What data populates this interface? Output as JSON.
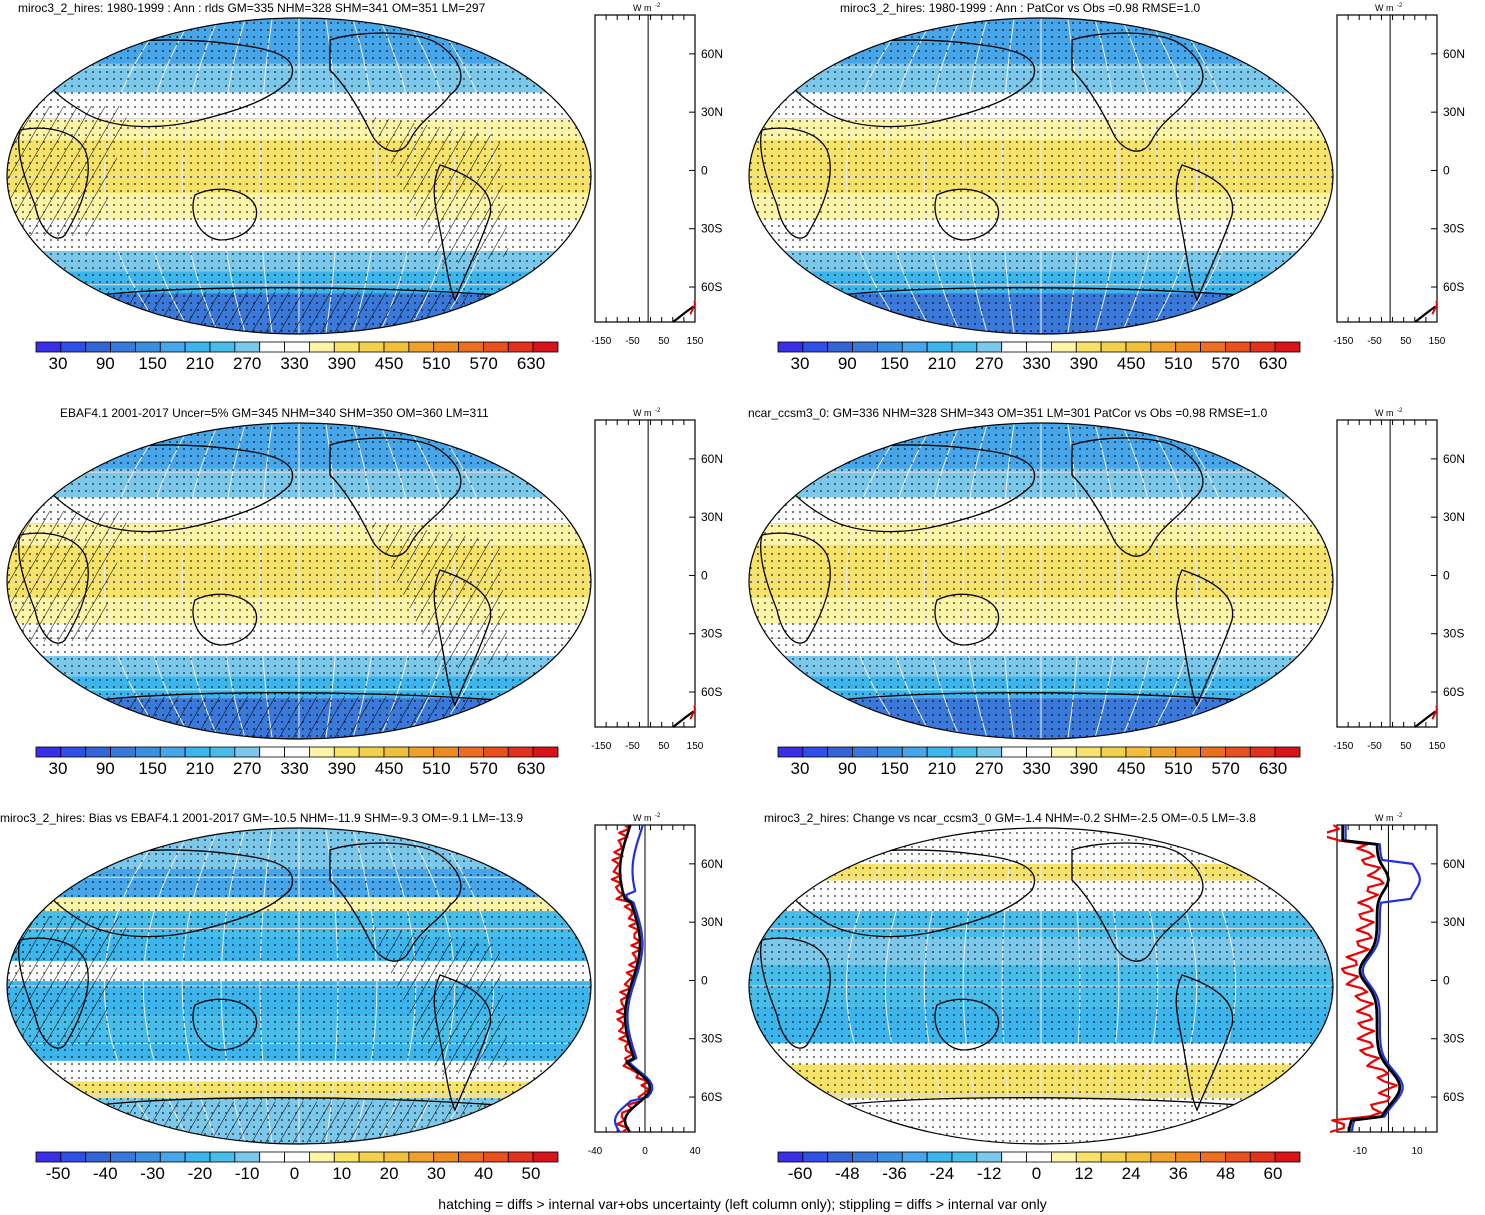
{
  "panels": [
    {
      "id": "p1",
      "title": "miroc3_2_hires: 1980-1999 : Ann : rlds GM=335 NHM=328 SHM=341 OM=351 LM=297",
      "colorbar": {
        "labels": [
          "30",
          "90",
          "150",
          "210",
          "270",
          "330",
          "390",
          "450",
          "510",
          "570",
          "630"
        ],
        "palette": "abs"
      },
      "zonal": {
        "xtick_labels": [
          "-150",
          "-50",
          "50",
          "150"
        ],
        "lat_labels": [
          "60N",
          "30N",
          "0",
          "30S",
          "60S"
        ],
        "units": "W m-2",
        "scale": "abs"
      },
      "hatching": true
    },
    {
      "id": "p2",
      "title": "miroc3_2_hires: 1980-1999 : Ann : PatCor vs Obs =0.98 RMSE=1.0",
      "colorbar": {
        "labels": [
          "30",
          "90",
          "150",
          "210",
          "270",
          "330",
          "390",
          "450",
          "510",
          "570",
          "630"
        ],
        "palette": "abs"
      },
      "zonal": {
        "xtick_labels": [
          "-150",
          "-50",
          "50",
          "150"
        ],
        "lat_labels": [
          "60N",
          "30N",
          "0",
          "30S",
          "60S"
        ],
        "units": "W m-2",
        "scale": "abs"
      },
      "hatching": false
    },
    {
      "id": "p3",
      "title": "EBAF4.1 2001-2017 Uncer=5% GM=345 NHM=340 SHM=350 OM=360 LM=311",
      "colorbar": {
        "labels": [
          "30",
          "90",
          "150",
          "210",
          "270",
          "330",
          "390",
          "450",
          "510",
          "570",
          "630"
        ],
        "palette": "abs"
      },
      "zonal": {
        "xtick_labels": [
          "-150",
          "-50",
          "50",
          "150"
        ],
        "lat_labels": [
          "60N",
          "30N",
          "0",
          "30S",
          "60S"
        ],
        "units": "W m-2",
        "scale": "abs"
      },
      "hatching": true
    },
    {
      "id": "p4",
      "title": "ncar_ccsm3_0: GM=336 NHM=328 SHM=343 OM=351 LM=301 PatCor vs Obs =0.98 RMSE=1.0",
      "colorbar": {
        "labels": [
          "30",
          "90",
          "150",
          "210",
          "270",
          "330",
          "390",
          "450",
          "510",
          "570",
          "630"
        ],
        "palette": "abs"
      },
      "zonal": {
        "xtick_labels": [
          "-150",
          "-50",
          "50",
          "150"
        ],
        "lat_labels": [
          "60N",
          "30N",
          "0",
          "30S",
          "60S"
        ],
        "units": "W m-2",
        "scale": "abs"
      },
      "hatching": false
    },
    {
      "id": "p5",
      "title": "miroc3_2_hires: Bias vs EBAF4.1 2001-2017 GM=-10.5 NHM=-11.9 SHM=-9.3 OM=-9.1 LM=-13.9",
      "colorbar": {
        "labels": [
          "-50",
          "-40",
          "-30",
          "-20",
          "-10",
          "0",
          "10",
          "20",
          "30",
          "40",
          "50"
        ],
        "palette": "diff"
      },
      "zonal": {
        "xtick_labels": [
          "-40",
          "0",
          "40"
        ],
        "lat_labels": [
          "60N",
          "30N",
          "0",
          "30S",
          "60S"
        ],
        "units": "W m-2",
        "scale": "bias"
      },
      "hatching": true
    },
    {
      "id": "p6",
      "title": "miroc3_2_hires: Change vs ncar_ccsm3_0 GM=-1.4 NHM=-0.2 SHM=-2.5 OM=-0.5 LM=-3.8",
      "colorbar": {
        "labels": [
          "-60",
          "-48",
          "-36",
          "-24",
          "-12",
          "0",
          "12",
          "24",
          "36",
          "48",
          "60"
        ],
        "palette": "diff"
      },
      "zonal": {
        "xtick_labels": [
          "-10",
          "10"
        ],
        "lat_labels": [
          "60N",
          "30N",
          "0",
          "30S",
          "60S"
        ],
        "units": "W m-2",
        "scale": "change"
      },
      "hatching": false
    }
  ],
  "palettes": {
    "abs": [
      "#3a2ee6",
      "#2f4fe8",
      "#3465d6",
      "#3a78d9",
      "#3b8fe0",
      "#47a6ea",
      "#3cb5ec",
      "#48bde9",
      "#7cc8ea",
      "#ffffff",
      "#ffffff",
      "#fff5a8",
      "#f7e36a",
      "#f2d24d",
      "#f0c03b",
      "#eea22b",
      "#ee8a22",
      "#ec6e20",
      "#e8501d",
      "#e2311c",
      "#d8141a"
    ],
    "diff": [
      "#3a2ee6",
      "#2f4fe8",
      "#3465d6",
      "#3a78d9",
      "#3b8fe0",
      "#47a6ea",
      "#3cb5ec",
      "#48bde9",
      "#7cc8ea",
      "#ffffff",
      "#ffffff",
      "#fff5a8",
      "#f7e36a",
      "#f2d24d",
      "#f0c03b",
      "#eea22b",
      "#ee8a22",
      "#ec6e20",
      "#e8501d",
      "#e2311c",
      "#d8141a"
    ]
  },
  "footer": "hatching = diffs > internal var+obs uncertainty (left column only); stippling = diffs > internal var only"
}
